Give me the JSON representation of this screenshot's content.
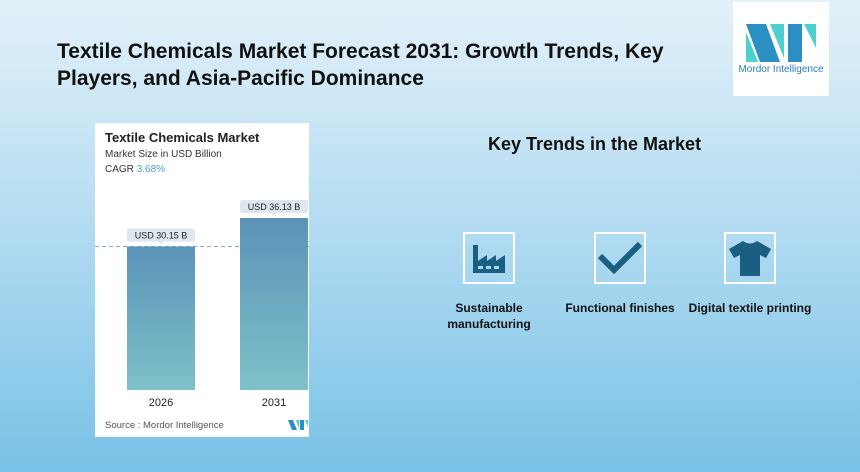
{
  "header": {
    "title": "Textile Chemicals Market Forecast 2031: Growth Trends, Key Players, and Asia-Pacific Dominance"
  },
  "logo": {
    "text": "Mordor Intelligence"
  },
  "chart_data": {
    "type": "bar",
    "title": "Textile Chemicals Market",
    "subtitle": "Market Size in USD Billion",
    "cagr_label": "CAGR",
    "cagr_value": "3.68%",
    "categories": [
      "2026",
      "2031"
    ],
    "values": [
      30.15,
      36.13
    ],
    "data_labels": [
      "USD 30.15 B",
      "USD 36.13 B"
    ],
    "ylim": [
      0,
      36.13
    ],
    "bar_color_top": "#5b93b8",
    "bar_color_bottom": "#7fc1c9",
    "source": "Source :  Mordor Intelligence"
  },
  "trends": {
    "heading": "Key Trends in the Market",
    "items": [
      {
        "icon": "factory-icon",
        "label": "Sustainable manufacturing"
      },
      {
        "icon": "checkmark-icon",
        "label": "Functional finishes"
      },
      {
        "icon": "tshirt-icon",
        "label": "Digital textile printing"
      }
    ],
    "icon_color": "#1a5f82"
  }
}
